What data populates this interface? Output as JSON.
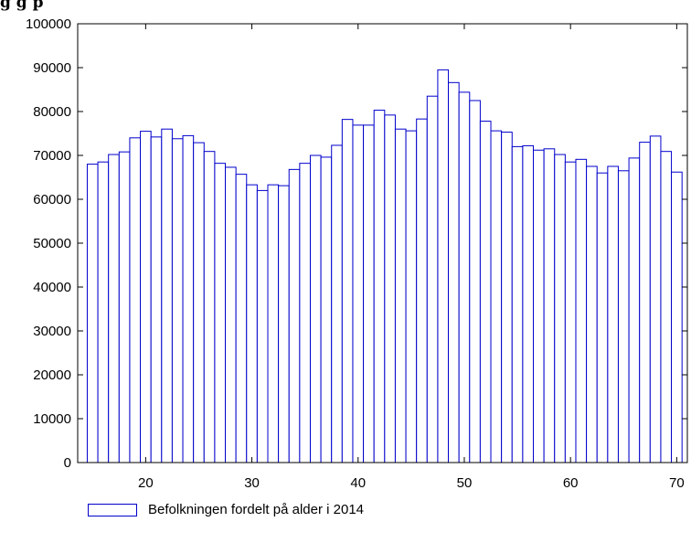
{
  "title": "g      g       p",
  "chart_data": {
    "type": "bar",
    "xlim": [
      13.6,
      71
    ],
    "ylim": [
      0,
      100000
    ],
    "x_ticks": [
      20,
      30,
      40,
      50,
      60,
      70
    ],
    "y_ticks": [
      0,
      10000,
      20000,
      30000,
      40000,
      50000,
      60000,
      70000,
      80000,
      90000,
      100000
    ],
    "grid": false,
    "legend_position": "bottom-left",
    "bar_color": "#0000cc",
    "x": [
      15,
      16,
      17,
      18,
      19,
      20,
      21,
      22,
      23,
      24,
      25,
      26,
      27,
      28,
      29,
      30,
      31,
      32,
      33,
      34,
      35,
      36,
      37,
      38,
      39,
      40,
      41,
      42,
      43,
      44,
      45,
      46,
      47,
      48,
      49,
      50,
      51,
      52,
      53,
      54,
      55,
      56,
      57,
      58,
      59,
      60,
      61,
      62,
      63,
      64,
      65,
      66,
      67,
      68,
      69,
      70
    ],
    "series": [
      {
        "name": "Befolkningen fordelt på alder i 2014",
        "values": [
          68000,
          68500,
          70200,
          70800,
          74000,
          75500,
          74200,
          76000,
          73800,
          74500,
          72900,
          70900,
          68200,
          67300,
          65700,
          63300,
          62000,
          63300,
          63100,
          66800,
          68200,
          70000,
          69600,
          72300,
          78200,
          76900,
          76900,
          80300,
          79200,
          76000,
          75600,
          78300,
          83500,
          89500,
          86600,
          84400,
          82500,
          77800,
          75600,
          75300,
          72000,
          72200,
          71200,
          71500,
          70200,
          68500,
          69100,
          67500,
          66000,
          67500,
          66500,
          69400,
          73000,
          74400,
          70900,
          66200
        ]
      }
    ]
  }
}
